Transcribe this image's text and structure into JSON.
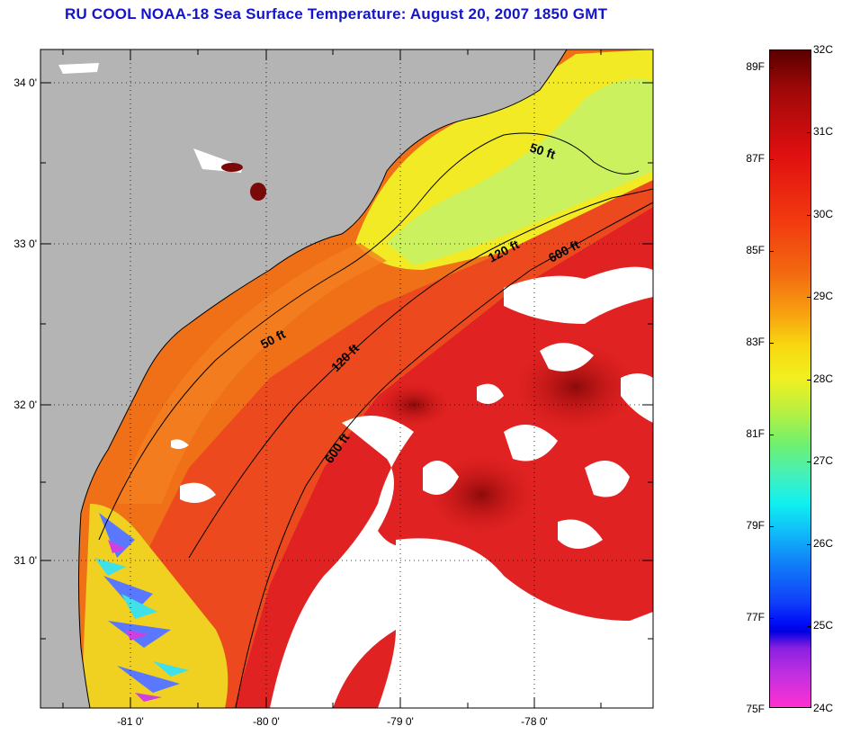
{
  "title": "RU COOL  NOAA-18  Sea Surface Temperature:  August 20, 2007 1850 GMT",
  "map": {
    "lon_ticks": [
      "-81 0'",
      "-80 0'",
      "-79 0'",
      "-78 0'"
    ],
    "lat_ticks": [
      "34 0'",
      "33 0'",
      "32 0'",
      "31 0'"
    ],
    "contours": [
      {
        "label": "50 ft"
      },
      {
        "label": "120 ft"
      },
      {
        "label": "600 ft"
      },
      {
        "label": "50 ft"
      },
      {
        "label": "120 ft"
      },
      {
        "label": "600 ft"
      }
    ],
    "colors": {
      "land": "#b4b4b4",
      "cloud": "#ffffff",
      "warm": "#e02020",
      "hot": "#9a0c0c",
      "orange": "#f06a18",
      "yellow": "#f2ec1e",
      "green": "#b8f070",
      "cyan": "#40e0e8",
      "blue": "#3060ff",
      "magenta": "#e040d0"
    }
  },
  "colorbar": {
    "fahrenheit": [
      "89F",
      "87F",
      "85F",
      "83F",
      "81F",
      "79F",
      "77F",
      "75F"
    ],
    "celsius": [
      "32C",
      "31C",
      "30C",
      "29C",
      "28C",
      "27C",
      "26C",
      "25C",
      "24C"
    ]
  }
}
